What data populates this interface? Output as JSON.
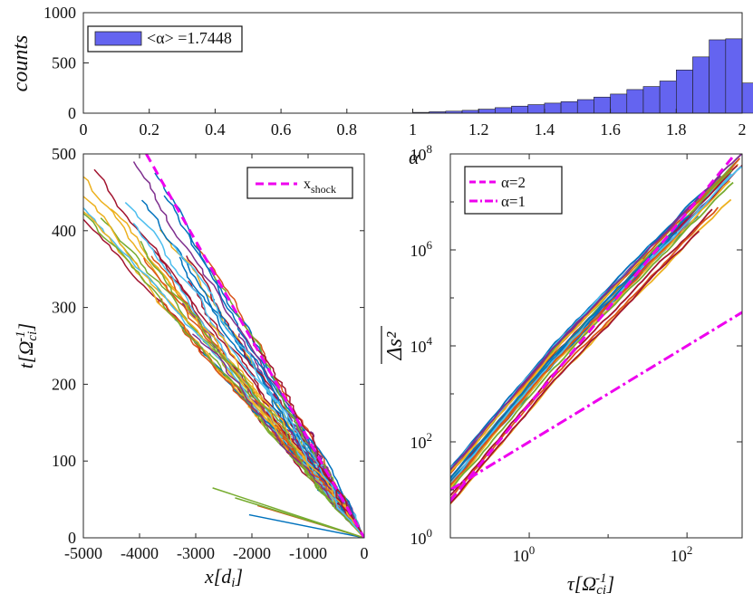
{
  "chart_data": [
    {
      "type": "bar",
      "title": "",
      "xlabel": "",
      "ylabel": "counts",
      "xlim": [
        0,
        2
      ],
      "ylim": [
        0,
        1000
      ],
      "xticks": [
        "0",
        "0.2",
        "0.4",
        "0.6",
        "0.8",
        "1",
        "1.2",
        "1.4",
        "1.6",
        "1.8",
        "2"
      ],
      "yticks": [
        "0",
        "500",
        "1000"
      ],
      "legend": "<α> =1.7448",
      "legend_position": "top-left",
      "bar_color": "#6464f0",
      "bins": [
        {
          "x0": 1.0,
          "x1": 1.05,
          "count": 8
        },
        {
          "x0": 1.05,
          "x1": 1.1,
          "count": 14
        },
        {
          "x0": 1.1,
          "x1": 1.15,
          "count": 20
        },
        {
          "x0": 1.15,
          "x1": 1.2,
          "count": 28
        },
        {
          "x0": 1.2,
          "x1": 1.25,
          "count": 40
        },
        {
          "x0": 1.25,
          "x1": 1.3,
          "count": 55
        },
        {
          "x0": 1.3,
          "x1": 1.35,
          "count": 70
        },
        {
          "x0": 1.35,
          "x1": 1.4,
          "count": 85
        },
        {
          "x0": 1.4,
          "x1": 1.45,
          "count": 100
        },
        {
          "x0": 1.45,
          "x1": 1.5,
          "count": 115
        },
        {
          "x0": 1.5,
          "x1": 1.55,
          "count": 135
        },
        {
          "x0": 1.55,
          "x1": 1.6,
          "count": 160
        },
        {
          "x0": 1.6,
          "x1": 1.65,
          "count": 190
        },
        {
          "x0": 1.65,
          "x1": 1.7,
          "count": 235
        },
        {
          "x0": 1.7,
          "x1": 1.75,
          "count": 265
        },
        {
          "x0": 1.75,
          "x1": 1.8,
          "count": 320
        },
        {
          "x0": 1.8,
          "x1": 1.85,
          "count": 430
        },
        {
          "x0": 1.85,
          "x1": 1.9,
          "count": 560
        },
        {
          "x0": 1.9,
          "x1": 1.95,
          "count": 730
        },
        {
          "x0": 1.95,
          "x1": 2.0,
          "count": 740
        },
        {
          "x0": 2.0,
          "x1": 2.05,
          "count": 300
        }
      ]
    },
    {
      "type": "line",
      "title": "",
      "xlabel": "x[d_i]",
      "ylabel": "t[Ω_ci^-1]",
      "xlim": [
        -5000,
        0
      ],
      "ylim": [
        0,
        500
      ],
      "xticks": [
        "-5000",
        "-4000",
        "-3000",
        "-2000",
        "-1000",
        "0"
      ],
      "yticks": [
        "0",
        "100",
        "200",
        "300",
        "400",
        "500"
      ],
      "legend": "x",
      "legend_sub": "shock",
      "legend_position": "top-right",
      "shock_line": {
        "x": [
          -3880,
          0
        ],
        "y": [
          500,
          0
        ],
        "color": "#ee00ee",
        "style": "dashed"
      },
      "trajectory_colors": [
        "#0072bd",
        "#d95319",
        "#edb120",
        "#7e2f8e",
        "#77ac30",
        "#4dbeee",
        "#a2142f"
      ],
      "trajectory_count": 56
    },
    {
      "type": "line",
      "title": "",
      "xlabel": "τ[Ω_ci^-1]",
      "ylabel": "Δs²",
      "alpha_axis_label": "α",
      "xscale": "log",
      "yscale": "log",
      "xlim": [
        0.1,
        500
      ],
      "ylim": [
        1,
        100000000
      ],
      "xticks": [
        {
          "value": 1,
          "base": "10",
          "exp": "0"
        },
        {
          "value": 100,
          "base": "10",
          "exp": "2"
        }
      ],
      "yticks": [
        {
          "value": 1,
          "base": "10",
          "exp": "0"
        },
        {
          "value": 100,
          "base": "10",
          "exp": "2"
        },
        {
          "value": 10000,
          "base": "10",
          "exp": "4"
        },
        {
          "value": 1000000,
          "base": "10",
          "exp": "6"
        },
        {
          "value": 100000000,
          "base": "10",
          "exp": "8"
        }
      ],
      "legend_position": "top-left",
      "reference_lines": [
        {
          "name": "α=2",
          "slope": 2,
          "coefficient": 600,
          "color": "#ee00ee",
          "style": "dashed"
        },
        {
          "name": "α=1",
          "slope": 1,
          "coefficient": 100,
          "color": "#ee00ee",
          "style": "dashdot"
        }
      ],
      "curve_colors": [
        "#0072bd",
        "#d95319",
        "#edb120",
        "#7e2f8e",
        "#77ac30",
        "#4dbeee",
        "#a2142f"
      ],
      "curve_count": 30
    }
  ]
}
